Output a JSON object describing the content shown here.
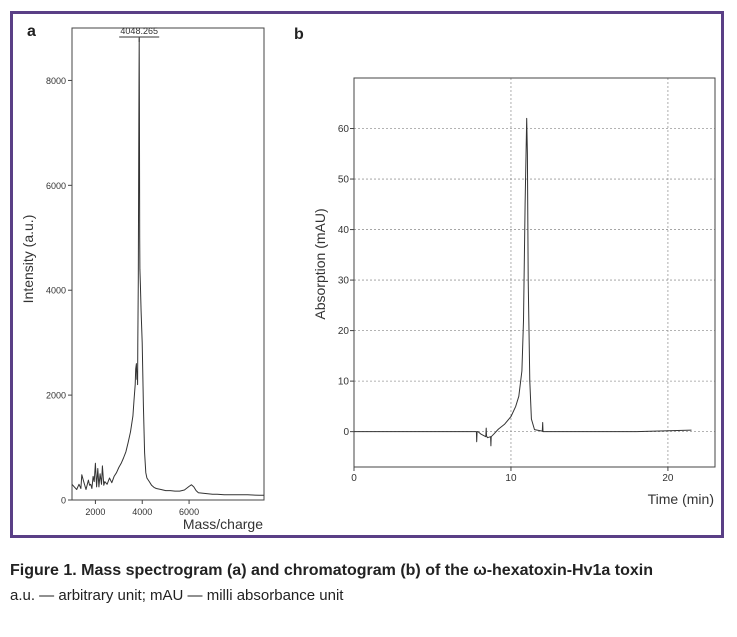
{
  "panels": {
    "a_label": "a",
    "b_label": "b"
  },
  "caption": {
    "title": "Figure 1. Mass spectrogram (a) and chromatogram (b) of the ω-hexatoxin-Hv1a toxin",
    "note": "a.u. — arbitrary unit; mAU — milli absorbance unit"
  },
  "colors": {
    "frame": "#5a3f86",
    "trace": "#333333"
  },
  "chart_data": [
    {
      "type": "line",
      "panel": "a",
      "xlabel": "Mass/charge",
      "ylabel": "Intensity (a.u.)",
      "xlim": [
        1000,
        9200
      ],
      "ylim": [
        0,
        9000
      ],
      "xticks": [
        2000,
        4000,
        6000
      ],
      "yticks": [
        0,
        2000,
        4000,
        6000,
        8000
      ],
      "grid": false,
      "annotation": {
        "text": "4048.265",
        "x": 3870
      },
      "series": [
        {
          "x": [
            1000,
            1100,
            1200,
            1300,
            1380,
            1420,
            1500,
            1600,
            1700,
            1750,
            1800,
            1850,
            1900,
            1950,
            2000,
            2050,
            2100,
            2150,
            2200,
            2260,
            2300,
            2360,
            2400,
            2500,
            2600,
            2700,
            2800,
            2900,
            3000,
            3100,
            3200,
            3300,
            3400,
            3500,
            3600,
            3650,
            3700,
            3720,
            3750,
            3770,
            3790,
            3800,
            3810,
            3830,
            3850,
            3860,
            3870,
            3880,
            3890,
            3900,
            3920,
            3950,
            4000,
            4050,
            4100,
            4150,
            4200,
            4300,
            4400,
            4500,
            4600,
            4800,
            5000,
            5200,
            5400,
            5600,
            5800,
            6000,
            6100,
            6200,
            6300,
            6400,
            6600,
            6800,
            7000,
            7200,
            7500,
            8000,
            8500,
            9000,
            9200
          ],
          "y": [
            300,
            250,
            200,
            300,
            220,
            480,
            350,
            200,
            380,
            280,
            300,
            220,
            450,
            350,
            700,
            250,
            600,
            250,
            500,
            300,
            650,
            280,
            350,
            300,
            420,
            330,
            450,
            520,
            620,
            700,
            800,
            920,
            1100,
            1300,
            1600,
            1900,
            2200,
            2500,
            2600,
            2300,
            2450,
            2200,
            3000,
            4200,
            6500,
            8000,
            8800,
            7600,
            5000,
            4400,
            4100,
            3600,
            3000,
            1800,
            900,
            520,
            420,
            350,
            280,
            240,
            220,
            200,
            180,
            180,
            170,
            170,
            190,
            260,
            290,
            250,
            180,
            140,
            130,
            120,
            110,
            110,
            100,
            100,
            100,
            90,
            90
          ]
        }
      ]
    },
    {
      "type": "line",
      "panel": "b",
      "xlabel": "Time (min)",
      "ylabel": "Absorption (mAU)",
      "xlim": [
        0,
        23
      ],
      "ylim": [
        -7,
        70
      ],
      "xticks": [
        0,
        10,
        20
      ],
      "yticks": [
        0,
        10,
        20,
        30,
        40,
        50,
        60
      ],
      "grid": true,
      "series": [
        {
          "x": [
            0,
            2,
            4,
            6,
            7.8,
            7.82,
            7.84,
            7.9,
            8.1,
            8.4,
            8.42,
            8.44,
            8.5,
            8.7,
            8.72,
            8.74,
            8.9,
            9.2,
            9.6,
            10.0,
            10.3,
            10.5,
            10.7,
            10.8,
            10.9,
            11.0,
            11.05,
            11.1,
            11.2,
            11.3,
            11.5,
            12.0,
            12.02,
            12.04,
            12.1,
            13,
            15,
            18,
            21.5
          ],
          "y": [
            0,
            0,
            0,
            0,
            0,
            -2,
            0,
            0,
            -0.5,
            -1,
            0.7,
            -0.8,
            -1.2,
            -1,
            -2.8,
            -1,
            -0.5,
            0.5,
            1.5,
            3,
            5,
            7,
            12,
            22,
            45,
            62,
            55,
            30,
            10,
            2.5,
            0.4,
            0.1,
            1.8,
            0,
            0,
            0,
            0,
            0,
            0.3
          ]
        }
      ]
    }
  ]
}
